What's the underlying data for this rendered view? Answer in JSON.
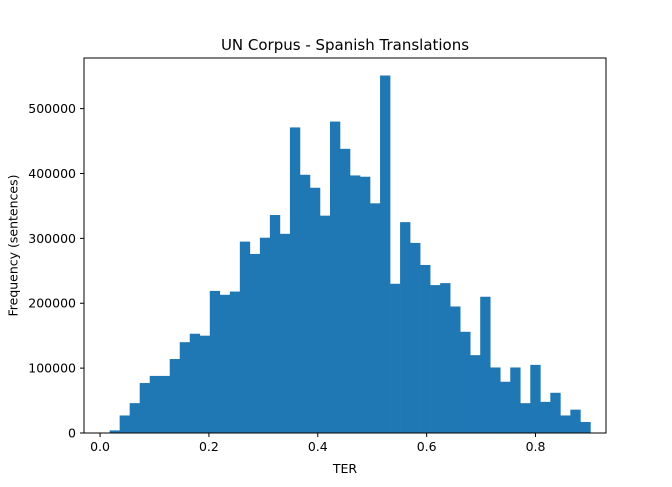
{
  "chart_data": {
    "type": "bar",
    "title": "UN Corpus - Spanish Translations",
    "xlabel": "TER",
    "ylabel": "Frequency (sentences)",
    "xlim": [
      -0.0295,
      0.9295
    ],
    "ylim": [
      0,
      578000
    ],
    "x_ticks": [
      0.0,
      0.2,
      0.4,
      0.6,
      0.8
    ],
    "x_tick_labels": [
      "0.0",
      "0.2",
      "0.4",
      "0.6",
      "0.8"
    ],
    "y_ticks": [
      0,
      100000,
      200000,
      300000,
      400000,
      500000
    ],
    "y_tick_labels": [
      "0",
      "100000",
      "200000",
      "300000",
      "400000",
      "500000"
    ],
    "bin_width": 0.0184,
    "bin_starts": [
      0.0176,
      0.036,
      0.0544,
      0.0728,
      0.0912,
      0.1096,
      0.128,
      0.1464,
      0.1648,
      0.1832,
      0.2016,
      0.22,
      0.2384,
      0.2568,
      0.2752,
      0.2936,
      0.312,
      0.3304,
      0.3488,
      0.3672,
      0.3856,
      0.404,
      0.4224,
      0.4408,
      0.4592,
      0.4776,
      0.496,
      0.5144,
      0.5328,
      0.5512,
      0.5696,
      0.588,
      0.6064,
      0.6248,
      0.6432,
      0.6616,
      0.68,
      0.6984,
      0.7168,
      0.7352,
      0.7536,
      0.772,
      0.7904,
      0.8088,
      0.8272,
      0.8456,
      0.864,
      0.8824
    ],
    "values": [
      4000,
      27000,
      46000,
      77000,
      88000,
      88000,
      114000,
      140000,
      153000,
      150000,
      219000,
      213000,
      218000,
      295000,
      276000,
      301000,
      336000,
      307000,
      471000,
      398000,
      378000,
      335000,
      480000,
      438000,
      397000,
      395000,
      354000,
      551000,
      230000,
      325000,
      293000,
      259000,
      228000,
      231000,
      195000,
      156000,
      120000,
      210000,
      101000,
      79000,
      101000,
      46000,
      105000,
      48000,
      62000,
      27000,
      36000,
      17000
    ],
    "bar_color": "#1f77b4",
    "grid": false,
    "legend": "none"
  }
}
